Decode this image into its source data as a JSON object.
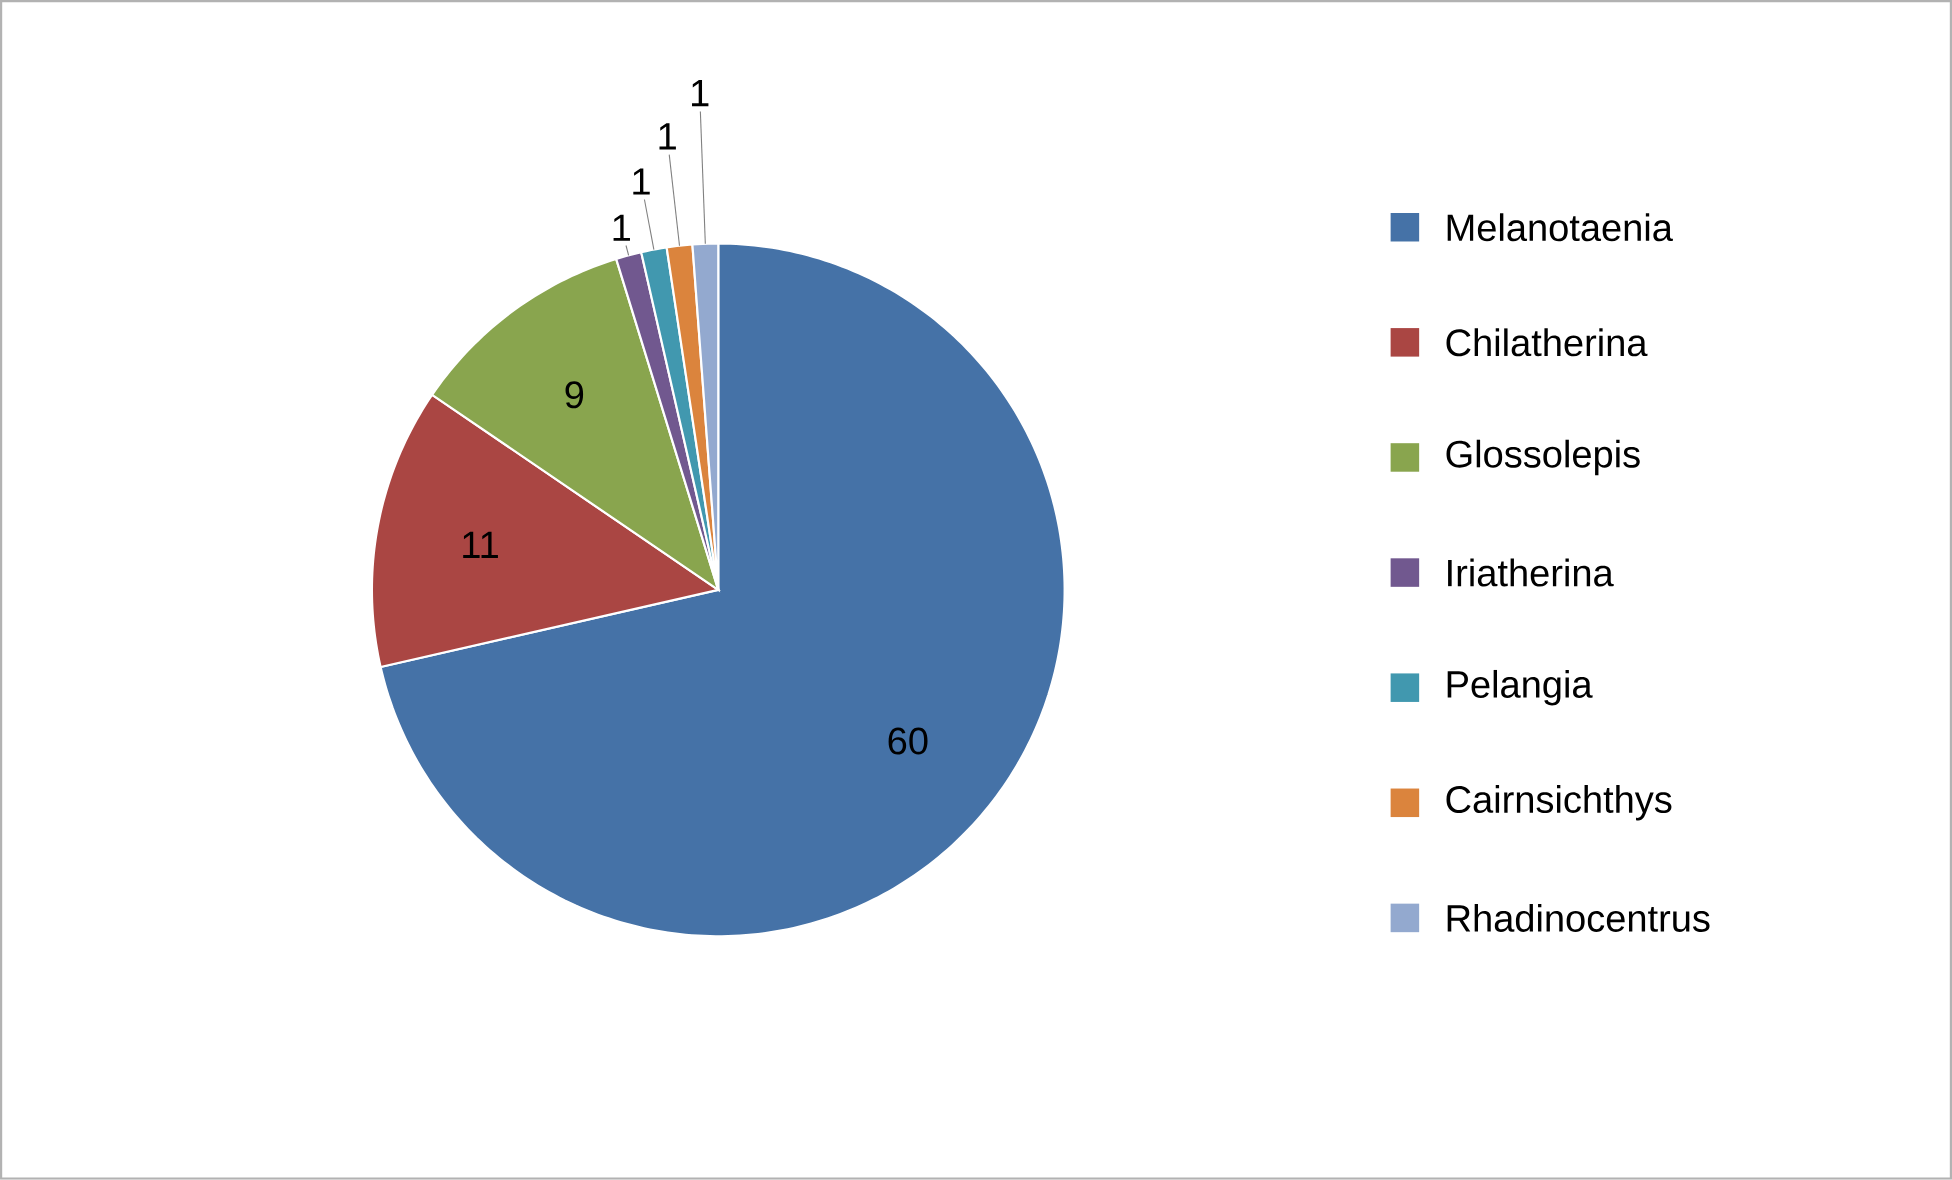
{
  "chart_data": {
    "type": "pie",
    "categories": [
      "Melanotaenia",
      "Chilatherina",
      "Glossolepis",
      "Iriatherina",
      "Pelangia",
      "Cairnsichthys",
      "Rhadinocentrus"
    ],
    "values": [
      60,
      11,
      9,
      1,
      1,
      1,
      1
    ],
    "colors": [
      "#4572a7",
      "#aa4643",
      "#89a54e",
      "#71588f",
      "#4198af",
      "#db843d",
      "#93a9cf"
    ],
    "data_labels": true,
    "legend": "right"
  }
}
